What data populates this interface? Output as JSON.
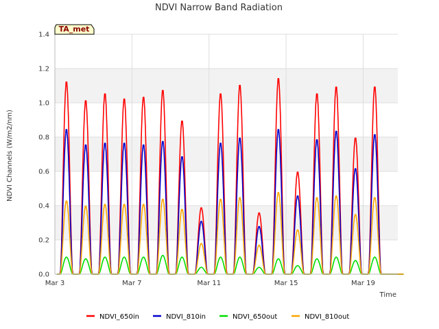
{
  "chart_data": {
    "type": "line",
    "title": "NDVI Narrow Band Radiation",
    "xlabel": "Time",
    "ylabel": "NDVI Channels (W/m2/nm)",
    "badge": "TA_met",
    "x_unit": "days since Mar 3",
    "xlim": [
      0,
      17.8
    ],
    "ylim": [
      0,
      1.4
    ],
    "yticks": [
      0.0,
      0.2,
      0.4,
      0.6,
      0.8,
      1.0,
      1.2,
      1.4
    ],
    "ytick_labels": [
      "0.0",
      "0.2",
      "0.4",
      "0.6",
      "0.8",
      "1.0",
      "1.2",
      "1.4"
    ],
    "xticks": [
      0,
      4,
      8,
      12,
      16
    ],
    "xtick_labels": [
      "Mar 3",
      "Mar 7",
      "Mar 11",
      "Mar 15",
      "Mar 19"
    ],
    "grid": true,
    "legend_position": "bottom",
    "day_peak_x": [
      0.6,
      1.6,
      2.6,
      3.6,
      4.6,
      5.6,
      6.6,
      7.6,
      8.6,
      9.6,
      10.6,
      11.6,
      12.6,
      13.6,
      14.6,
      15.6,
      16.6,
      17.6
    ],
    "series": [
      {
        "name": "NDVI_650in",
        "color": "#ff0000",
        "values": [
          1.13,
          1.02,
          1.06,
          1.03,
          1.04,
          1.08,
          0.9,
          0.39,
          1.06,
          1.11,
          0.36,
          1.15,
          0.6,
          1.06,
          1.1,
          0.8,
          1.1,
          0.0
        ]
      },
      {
        "name": "NDVI_810in",
        "color": "#0000cc",
        "values": [
          0.85,
          0.76,
          0.77,
          0.77,
          0.76,
          0.78,
          0.69,
          0.31,
          0.77,
          0.8,
          0.28,
          0.85,
          0.46,
          0.79,
          0.84,
          0.62,
          0.82,
          0.0
        ]
      },
      {
        "name": "NDVI_650out",
        "color": "#00dd00",
        "values": [
          0.1,
          0.09,
          0.1,
          0.1,
          0.1,
          0.11,
          0.1,
          0.04,
          0.1,
          0.1,
          0.04,
          0.09,
          0.05,
          0.09,
          0.1,
          0.08,
          0.1,
          0.0
        ]
      },
      {
        "name": "NDVI_810out",
        "color": "#ffa500",
        "values": [
          0.43,
          0.4,
          0.41,
          0.41,
          0.41,
          0.44,
          0.38,
          0.18,
          0.44,
          0.45,
          0.17,
          0.48,
          0.26,
          0.45,
          0.46,
          0.35,
          0.45,
          0.0
        ]
      }
    ]
  }
}
